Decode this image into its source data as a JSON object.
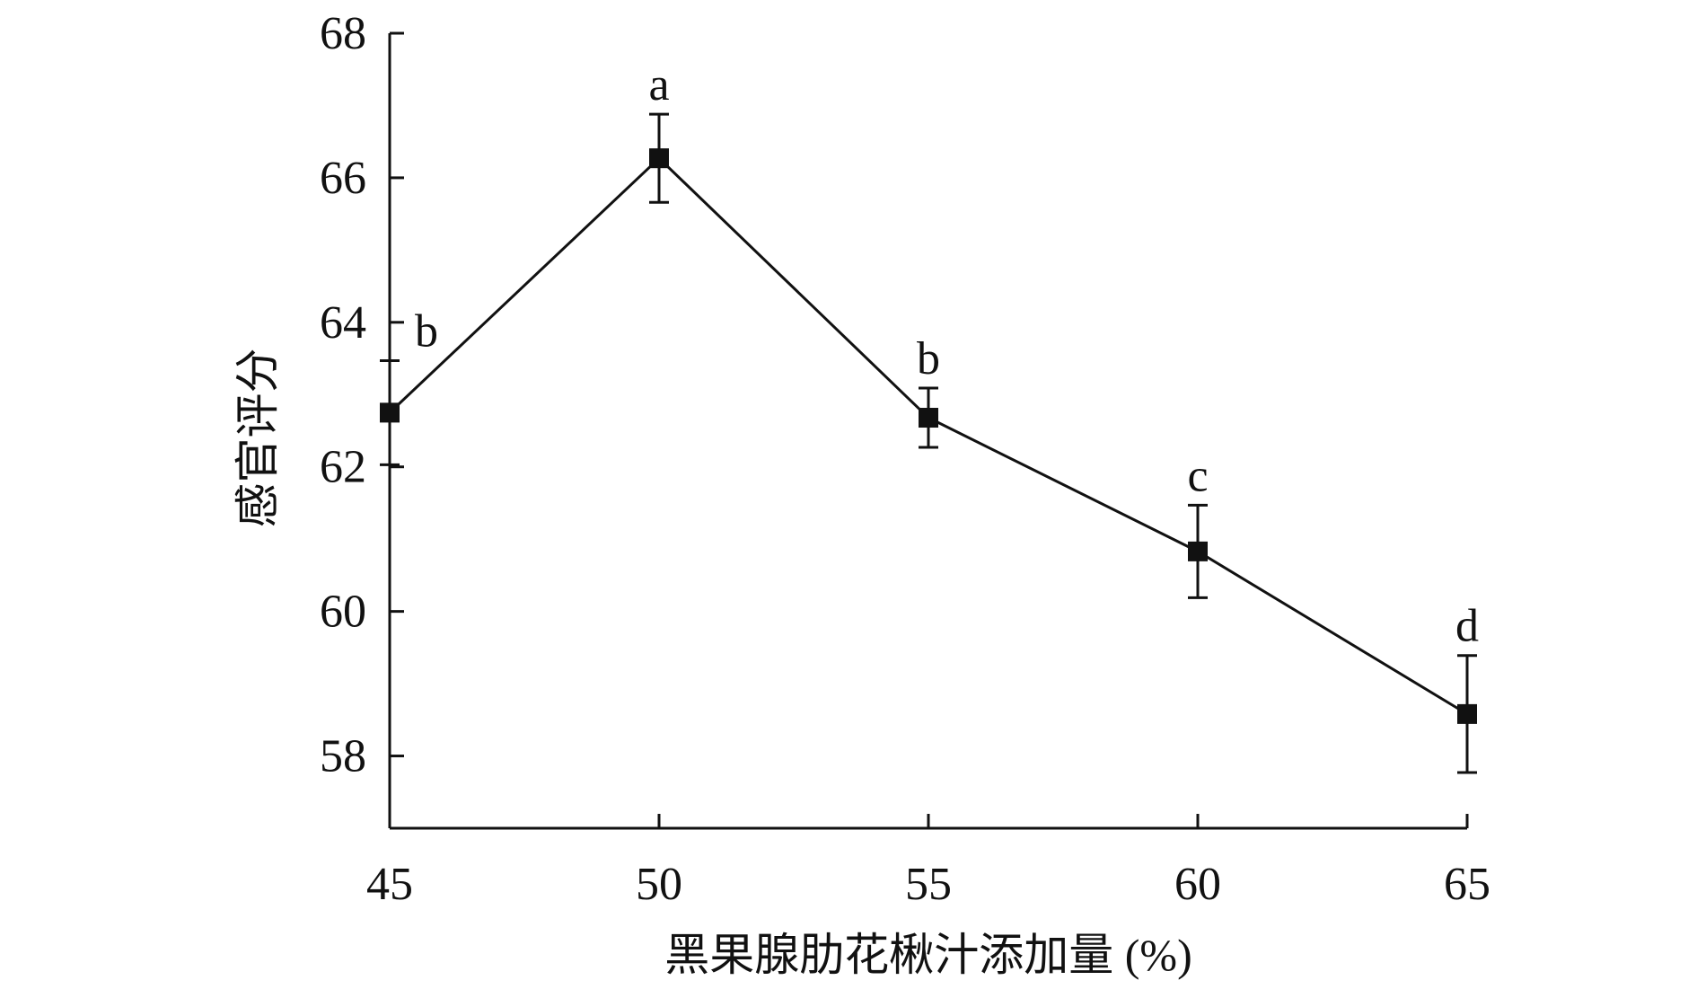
{
  "chart_data": {
    "type": "line",
    "title": "",
    "xlabel": "黑果腺肋花楸汁添加量 (%)",
    "ylabel": "感官评分",
    "x": [
      45,
      50,
      55,
      60,
      65
    ],
    "series": [
      {
        "values": [
          62.75,
          66.27,
          62.68,
          60.83,
          58.58
        ],
        "error": [
          0.72,
          0.61,
          0.41,
          0.64,
          0.81
        ],
        "significance": [
          "b",
          "a",
          "b",
          "c",
          "d"
        ]
      }
    ],
    "xlim": [
      45,
      65
    ],
    "ylim": [
      57,
      68
    ],
    "xticks": [
      "45",
      "50",
      "55",
      "60",
      "65"
    ],
    "yticks": [
      "58",
      "60",
      "62",
      "64",
      "66",
      "68"
    ],
    "grid": false,
    "legend": "none",
    "colors": {
      "line": "#111111",
      "marker": "#111111",
      "axis": "#111111"
    }
  }
}
